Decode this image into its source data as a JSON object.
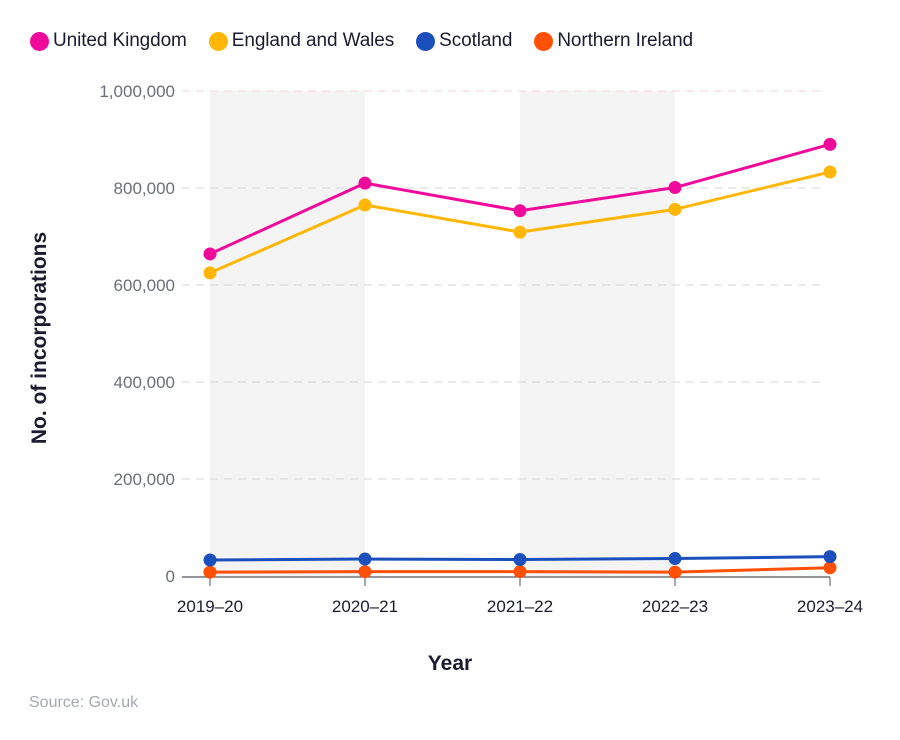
{
  "legend": [
    {
      "label": "United Kingdom",
      "color": "#f00a9c"
    },
    {
      "label": "England and Wales",
      "color": "#ffb703"
    },
    {
      "label": "Scotland",
      "color": "#1b4fbb"
    },
    {
      "label": "Northern Ireland",
      "color": "#ff5005"
    }
  ],
  "source": "Source: Gov.uk",
  "chart_data": {
    "type": "line",
    "title": "",
    "xlabel": "Year",
    "ylabel": "No. of incorporations",
    "categories": [
      "2019–20",
      "2020–21",
      "2021–22",
      "2022–23",
      "2023–24"
    ],
    "ylim": [
      0,
      1000000
    ],
    "yticks": [
      0,
      200000,
      400000,
      600000,
      800000,
      1000000
    ],
    "ytick_labels": [
      "0",
      "200,000",
      "400,000",
      "600,000",
      "800,000",
      "1,000,000"
    ],
    "grid": true,
    "shaded_bands": [
      [
        "2019–20",
        "2020–21"
      ],
      [
        "2021–22",
        "2022–23"
      ]
    ],
    "legend_position": "top-left",
    "series": [
      {
        "name": "United Kingdom",
        "color": "#f00a9c",
        "values": [
          664000,
          810000,
          753000,
          801000,
          890000
        ]
      },
      {
        "name": "England and Wales",
        "color": "#ffb703",
        "values": [
          625000,
          765000,
          709000,
          756000,
          833000
        ]
      },
      {
        "name": "Scotland",
        "color": "#1b4fbb",
        "values": [
          33000,
          35000,
          34000,
          36000,
          40000
        ]
      },
      {
        "name": "Northern Ireland",
        "color": "#ff5005",
        "values": [
          8000,
          9000,
          9000,
          8000,
          17000
        ]
      }
    ]
  }
}
